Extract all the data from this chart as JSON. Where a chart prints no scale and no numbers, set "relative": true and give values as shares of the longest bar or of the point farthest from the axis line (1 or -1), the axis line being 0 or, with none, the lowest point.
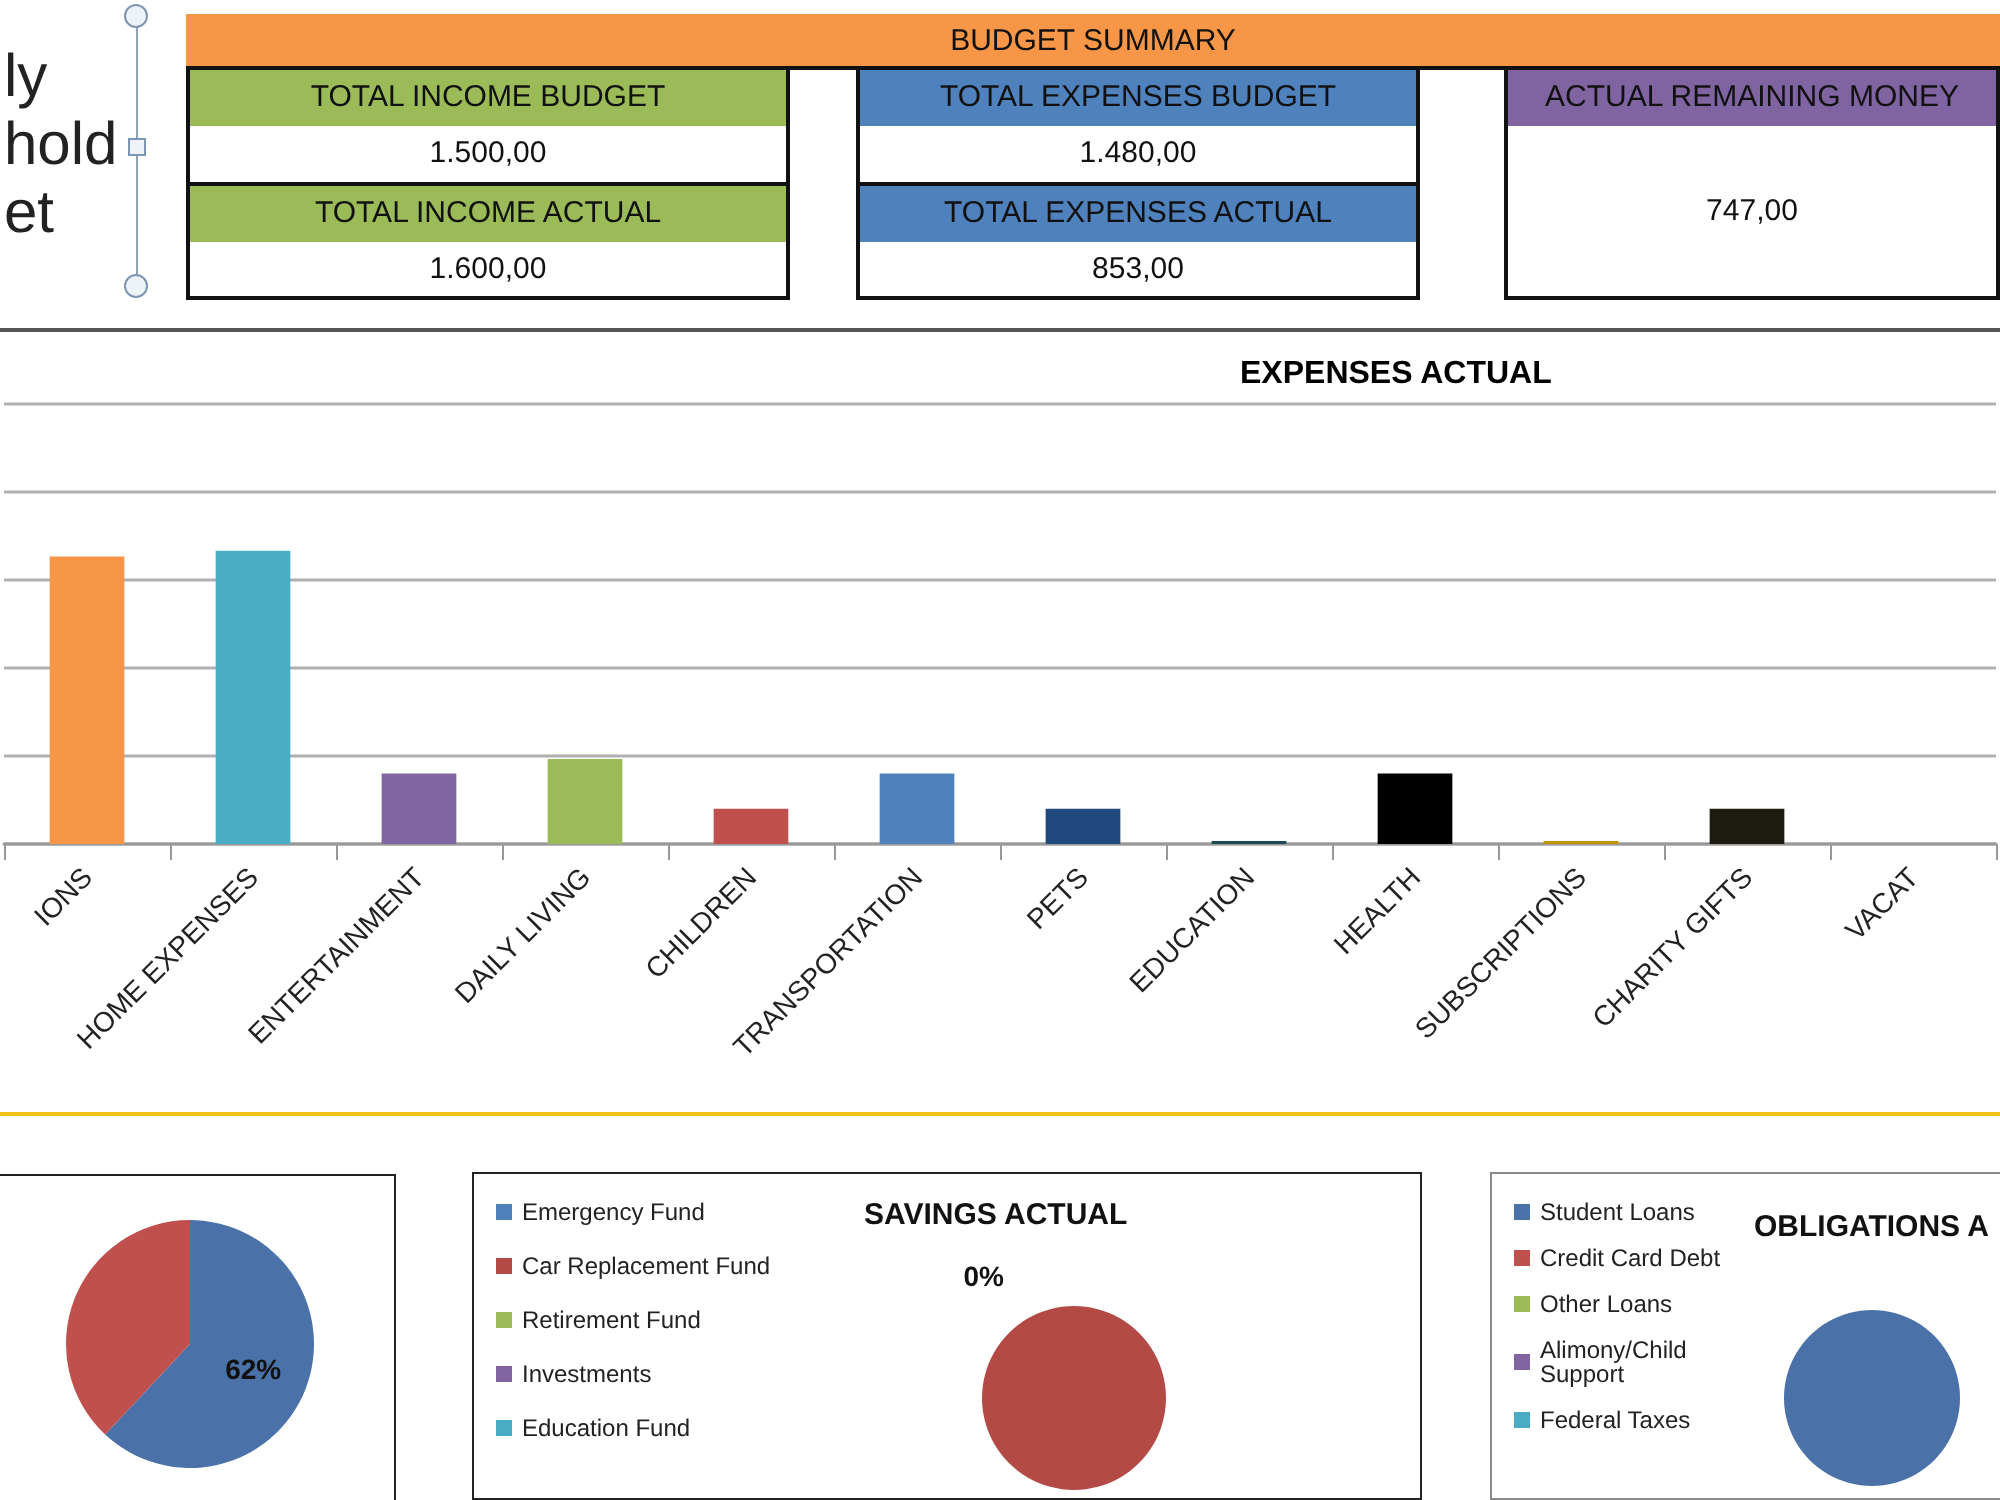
{
  "chart_data": [
    {
      "type": "other",
      "annotations": [
        "ly",
        "hold",
        "et"
      ]
    },
    {
      "type": "other",
      "title": "BUDGET SUMMARY",
      "color": "#f79646",
      "colors": [
        "#9bbb59",
        "#4f81bd",
        "#8064a2"
      ],
      "annotations": [
        "TOTAL INCOME BUDGET",
        "1.500,00",
        "TOTAL INCOME ACTUAL",
        "1.600,00",
        "TOTAL EXPENSES BUDGET",
        "1.480,00",
        "TOTAL EXPENSES ACTUAL",
        "853,00",
        "ACTUAL REMAINING MONEY",
        "747,00"
      ]
    },
    {
      "type": "bar",
      "title": "EXPENSES ACTUAL",
      "categories": [
        "IONS",
        "HOME EXPENSES",
        "ENTERTAINMENT",
        "DAILY LIVING",
        "CHILDREN",
        "TRANSPORTATION",
        "PETS",
        "EDUCATION",
        "HEALTH",
        "SUBSCRIPTIONS",
        "CHARITY GIFTS",
        "VACAT"
      ],
      "values": [
        0.98,
        1,
        0.24,
        0.29,
        0.12,
        0.24,
        0.12,
        0.01,
        0.24,
        0.01,
        0.12,
        null
      ],
      "colors": [
        "#f79646",
        "#4bacc6",
        "#8064a2",
        "#9bbb59",
        "#c0504d",
        "#4f81bd",
        "#1f497d",
        "#1b4a52",
        "#000000",
        "#c09500",
        "#1d1b10",
        null
      ],
      "relative": true,
      "grid": "y"
    },
    {
      "type": "pie",
      "categories": [
        null,
        null
      ],
      "values": [
        62,
        38
      ],
      "colors": [
        "#4a72a8",
        "#c0504d"
      ],
      "value_labels": [
        "62%",
        null
      ]
    },
    {
      "type": "pie",
      "title": "SAVINGS ACTUAL",
      "categories": [
        "Emergency Fund",
        "Car Replacement Fund",
        "Retirement Fund",
        "Investments",
        "Education Fund"
      ],
      "values": [
        0,
        100,
        0,
        0,
        0
      ],
      "colors": [
        "#4f81bd",
        "#b34a46",
        "#9bbb59",
        "#8064a2",
        "#4bacc6"
      ],
      "value_labels": [
        "0%",
        null,
        null,
        null,
        null
      ],
      "legend": "left"
    },
    {
      "type": "pie",
      "title": "OBLIGATIONS A",
      "categories": [
        "Student Loans",
        "Credit Card Debt",
        "Other Loans",
        "Alimony/Child Support",
        "Federal Taxes"
      ],
      "values": [
        100,
        0,
        0,
        0,
        0
      ],
      "colors": [
        "#4a72a8",
        "#c0504d",
        "#9bbb59",
        "#8064a2",
        "#4bacc6"
      ],
      "legend": "left"
    }
  ]
}
